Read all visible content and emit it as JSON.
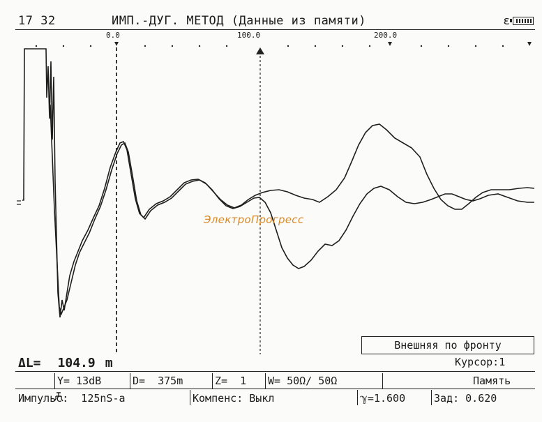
{
  "header": {
    "time": "17 32",
    "title": "ИМП.-ДУГ. МЕТОД (Данные из памяти)",
    "battery_symbol": "ε",
    "battery_icon": "battery-icon"
  },
  "scale": {
    "tick_labels": [
      "0.0",
      "100.0",
      "200.0"
    ]
  },
  "watermark": "ЭлектроПрогресс",
  "readout": {
    "label": "ΔL=",
    "value": "104.9",
    "unit": "m"
  },
  "mode_button": "Внешняя по фронту",
  "cursor_label": "Курсор:1",
  "params": {
    "icon": "wave-icon",
    "gain": "Y= 13dB",
    "range": "D=  375m",
    "zoom": "Z=  1",
    "impedance": "W= 50Ω/ 50Ω",
    "memory": "Память"
  },
  "status": {
    "pulse": "Импульс:  125nS-a",
    "compensation": "Компенс: Выкл",
    "velocity": "ℽ=1.600",
    "delay": "Зад: 0.620"
  },
  "colors": {
    "trace": "#1e1e1e",
    "background": "#fbfbf9",
    "watermark": "#d98a2a"
  }
}
